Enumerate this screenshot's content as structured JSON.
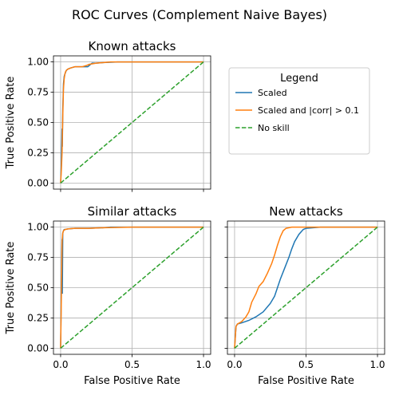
{
  "figure": {
    "title": "ROC Curves (Complement Naive Bayes)"
  },
  "legend": {
    "title": "Legend",
    "entries": [
      {
        "label": "Scaled",
        "color": "#1f77b4",
        "dash": false
      },
      {
        "label": "Scaled and |corr| > 0.1",
        "color": "#ff7f0e",
        "dash": false
      },
      {
        "label": "No skill",
        "color": "#2ca02c",
        "dash": true
      }
    ]
  },
  "chart_data": [
    {
      "type": "line",
      "title": "Known attacks",
      "xlabel": "",
      "ylabel": "True Positive Rate",
      "xlim": [
        -0.05,
        1.05
      ],
      "ylim": [
        -0.05,
        1.05
      ],
      "xticks": [
        0.0,
        0.5,
        1.0
      ],
      "xtick_labels": [
        "",
        "",
        ""
      ],
      "yticks": [
        0.0,
        0.25,
        0.5,
        0.75,
        1.0
      ],
      "ytick_labels": [
        "0.00",
        "0.25",
        "0.50",
        "0.75",
        "1.00"
      ],
      "grid": true,
      "series": [
        {
          "name": "Scaled",
          "color": "#1f77b4",
          "dash": false,
          "x": [
            0,
            0.005,
            0.01,
            0.012,
            0.015,
            0.02,
            0.025,
            0.03,
            0.04,
            0.05,
            0.07,
            0.1,
            0.15,
            0.19,
            0.2,
            0.22,
            0.25,
            0.3,
            0.4,
            0.6,
            1.0
          ],
          "y": [
            0,
            0.15,
            0.45,
            0.3,
            0.6,
            0.82,
            0.88,
            0.9,
            0.93,
            0.94,
            0.95,
            0.96,
            0.96,
            0.96,
            0.97,
            0.99,
            0.99,
            0.995,
            1.0,
            1.0,
            1.0
          ]
        },
        {
          "name": "Scaled and |corr| > 0.1",
          "color": "#ff7f0e",
          "dash": false,
          "x": [
            0,
            0.005,
            0.01,
            0.015,
            0.02,
            0.025,
            0.03,
            0.035,
            0.04,
            0.05,
            0.07,
            0.1,
            0.15,
            0.18,
            0.2,
            0.25,
            0.35,
            0.5,
            1.0
          ],
          "y": [
            0,
            0.1,
            0.25,
            0.55,
            0.78,
            0.86,
            0.9,
            0.92,
            0.93,
            0.94,
            0.95,
            0.96,
            0.96,
            0.97,
            0.98,
            0.99,
            1.0,
            1.0,
            1.0
          ]
        },
        {
          "name": "No skill",
          "color": "#2ca02c",
          "dash": true,
          "x": [
            0,
            1
          ],
          "y": [
            0,
            1
          ]
        }
      ]
    },
    {
      "type": "line",
      "title": "Similar attacks",
      "xlabel": "False Positive Rate",
      "ylabel": "True Positive Rate",
      "xlim": [
        -0.05,
        1.05
      ],
      "ylim": [
        -0.05,
        1.05
      ],
      "xticks": [
        0.0,
        0.5,
        1.0
      ],
      "xtick_labels": [
        "0.0",
        "0.5",
        "1.0"
      ],
      "yticks": [
        0.0,
        0.25,
        0.5,
        0.75,
        1.0
      ],
      "ytick_labels": [
        "0.00",
        "0.25",
        "0.50",
        "0.75",
        "1.00"
      ],
      "grid": true,
      "series": [
        {
          "name": "Scaled",
          "color": "#1f77b4",
          "dash": false,
          "x": [
            0,
            0.005,
            0.01,
            0.012,
            0.015,
            0.02,
            0.025,
            0.03,
            0.05,
            0.1,
            0.2,
            0.3,
            0.35,
            0.5,
            1.0
          ],
          "y": [
            0,
            0.5,
            0.9,
            0.45,
            0.95,
            0.97,
            0.98,
            0.98,
            0.985,
            0.99,
            0.99,
            0.995,
            1.0,
            1.0,
            1.0
          ]
        },
        {
          "name": "Scaled and |corr| > 0.1",
          "color": "#ff7f0e",
          "dash": false,
          "x": [
            0,
            0.005,
            0.01,
            0.015,
            0.02,
            0.03,
            0.05,
            0.1,
            0.2,
            0.3,
            0.5,
            1.0
          ],
          "y": [
            0,
            0.4,
            0.88,
            0.95,
            0.97,
            0.98,
            0.985,
            0.99,
            0.99,
            0.995,
            1.0,
            1.0
          ]
        },
        {
          "name": "No skill",
          "color": "#2ca02c",
          "dash": true,
          "x": [
            0,
            1
          ],
          "y": [
            0,
            1
          ]
        }
      ]
    },
    {
      "type": "line",
      "title": "New attacks",
      "xlabel": "False Positive Rate",
      "ylabel": "",
      "xlim": [
        -0.05,
        1.05
      ],
      "ylim": [
        -0.05,
        1.05
      ],
      "xticks": [
        0.0,
        0.5,
        1.0
      ],
      "xtick_labels": [
        "0.0",
        "0.5",
        "1.0"
      ],
      "yticks": [
        0.0,
        0.25,
        0.5,
        0.75,
        1.0
      ],
      "ytick_labels": [
        "",
        "",
        "",
        "",
        ""
      ],
      "grid": true,
      "series": [
        {
          "name": "Scaled",
          "color": "#1f77b4",
          "dash": false,
          "x": [
            0,
            0.01,
            0.02,
            0.05,
            0.1,
            0.15,
            0.2,
            0.25,
            0.28,
            0.3,
            0.32,
            0.35,
            0.38,
            0.4,
            0.42,
            0.45,
            0.48,
            0.5,
            0.6,
            0.8,
            1.0
          ],
          "y": [
            0,
            0.18,
            0.2,
            0.21,
            0.23,
            0.26,
            0.3,
            0.37,
            0.43,
            0.5,
            0.57,
            0.66,
            0.75,
            0.82,
            0.88,
            0.94,
            0.98,
            0.99,
            1.0,
            1.0,
            1.0
          ]
        },
        {
          "name": "Scaled and |corr| > 0.1",
          "color": "#ff7f0e",
          "dash": false,
          "x": [
            0,
            0.01,
            0.02,
            0.05,
            0.08,
            0.1,
            0.12,
            0.15,
            0.17,
            0.2,
            0.23,
            0.26,
            0.28,
            0.3,
            0.32,
            0.34,
            0.36,
            0.4,
            0.5,
            0.7,
            1.0
          ],
          "y": [
            0,
            0.18,
            0.2,
            0.22,
            0.26,
            0.3,
            0.38,
            0.45,
            0.51,
            0.55,
            0.62,
            0.7,
            0.77,
            0.85,
            0.92,
            0.97,
            0.99,
            1.0,
            1.0,
            1.0,
            1.0
          ]
        },
        {
          "name": "No skill",
          "color": "#2ca02c",
          "dash": true,
          "x": [
            0,
            1
          ],
          "y": [
            0,
            1
          ]
        }
      ]
    }
  ]
}
